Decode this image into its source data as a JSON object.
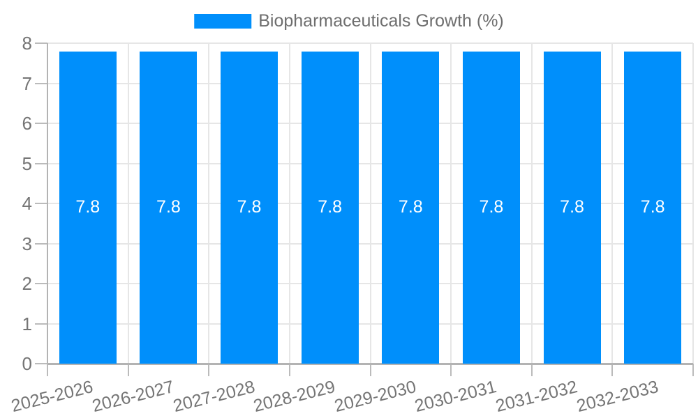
{
  "legend": {
    "label": "Biopharmaceuticals Growth (%)"
  },
  "chart_data": {
    "type": "bar",
    "title": "",
    "xlabel": "",
    "ylabel": "",
    "categories": [
      "2025-2026",
      "2026-2027",
      "2027-2028",
      "2028-2029",
      "2029-2030",
      "2030-2031",
      "2031-2032",
      "2032-2033"
    ],
    "series": [
      {
        "name": "Biopharmaceuticals Growth (%)",
        "values": [
          7.8,
          7.8,
          7.8,
          7.8,
          7.8,
          7.8,
          7.8,
          7.8
        ]
      }
    ],
    "display_values": [
      "7.8",
      "7.8",
      "7.8",
      "7.8",
      "7.8",
      "7.8",
      "7.8",
      "7.8"
    ],
    "ylim": [
      0,
      8
    ],
    "yticks": [
      0,
      1,
      2,
      3,
      4,
      5,
      6,
      7,
      8
    ],
    "ytick_labels": [
      "0",
      "1",
      "2",
      "3",
      "4",
      "5",
      "6",
      "7",
      "8"
    ],
    "grid": true,
    "legend_position": "top-center",
    "colors": {
      "bar": "#008FFB",
      "bar_label": "#FFFFFF",
      "gridline": "#E6E6E6",
      "axis": "#B3B3B3",
      "tick": "#BBBBBB",
      "tick_label": "#757575",
      "legend_text": "#6E6E6E",
      "background": "#FFFFFF"
    }
  }
}
